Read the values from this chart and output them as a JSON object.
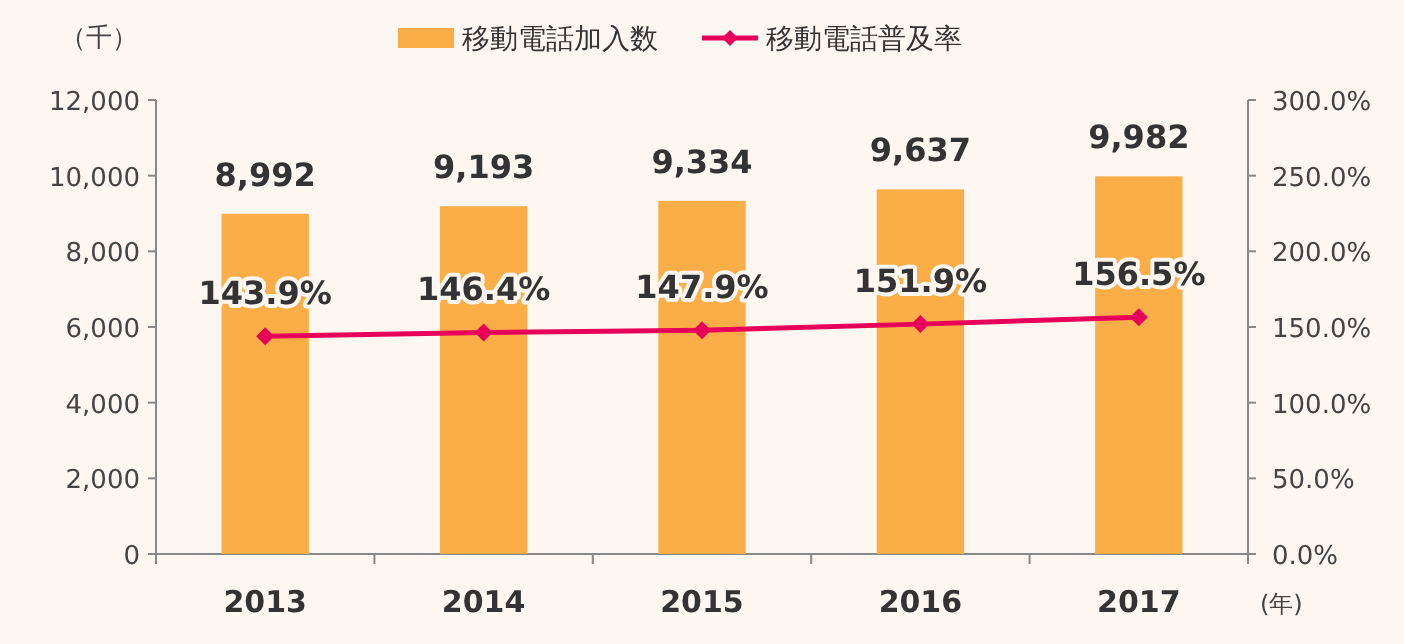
{
  "chart_data": {
    "type": "bar",
    "categories": [
      "2013",
      "2014",
      "2015",
      "2016",
      "2017"
    ],
    "ylabel": "（千）",
    "xlabel": "(年)",
    "series": [
      {
        "name": "移動電話加入数",
        "color": "#fbad48",
        "values": [
          8992,
          9193,
          9334,
          9637,
          9982
        ],
        "value_labels": [
          "8,992",
          "9,193",
          "9,334",
          "9,637",
          "9,982"
        ]
      },
      {
        "name": "移動電話普及率",
        "type": "line",
        "axis": "y2",
        "color": "#e6005a",
        "marker": "diamond",
        "values": [
          143.9,
          146.4,
          147.9,
          151.9,
          156.5
        ],
        "value_labels": [
          "143.9%",
          "146.4%",
          "147.9%",
          "151.9%",
          "156.5%"
        ]
      }
    ],
    "ylim": [
      0,
      12000
    ],
    "yticks": [
      {
        "value": 0,
        "label": "0"
      },
      {
        "value": 2000,
        "label": "2,000"
      },
      {
        "value": 4000,
        "label": "4,000"
      },
      {
        "value": 6000,
        "label": "6,000"
      },
      {
        "value": 8000,
        "label": "8,000"
      },
      {
        "value": 10000,
        "label": "10,000"
      },
      {
        "value": 12000,
        "label": "12,000"
      }
    ],
    "y2lim": [
      0,
      300
    ],
    "y2ticks": [
      {
        "value": 0,
        "label": "0.0%"
      },
      {
        "value": 50,
        "label": "50.0%"
      },
      {
        "value": 100,
        "label": "100.0%"
      },
      {
        "value": 150,
        "label": "150.0%"
      },
      {
        "value": 200,
        "label": "200.0%"
      },
      {
        "value": 250,
        "label": "250.0%"
      },
      {
        "value": 300,
        "label": "300.0%"
      }
    ],
    "legend": "top",
    "grid": false
  }
}
